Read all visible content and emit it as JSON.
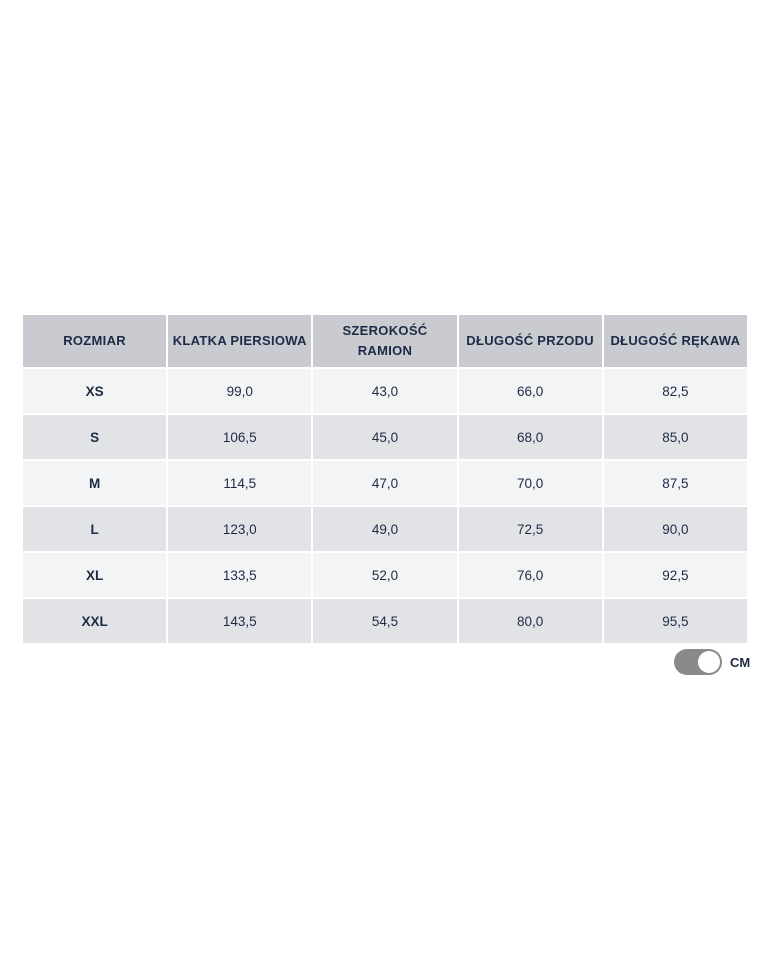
{
  "table": {
    "headers": [
      "ROZMIAR",
      "KLATKA PIERSIOWA",
      "SZEROKOŚĆ RAMION",
      "DŁUGOŚĆ PRZODU",
      "DŁUGOŚĆ RĘKAWA"
    ],
    "rows": [
      [
        "XS",
        "99,0",
        "43,0",
        "66,0",
        "82,5"
      ],
      [
        "S",
        "106,5",
        "45,0",
        "68,0",
        "85,0"
      ],
      [
        "M",
        "114,5",
        "47,0",
        "70,0",
        "87,5"
      ],
      [
        "L",
        "123,0",
        "49,0",
        "72,5",
        "90,0"
      ],
      [
        "XL",
        "133,5",
        "52,0",
        "76,0",
        "92,5"
      ],
      [
        "XXL",
        "143,5",
        "54,5",
        "80,0",
        "95,5"
      ]
    ]
  },
  "unit_toggle": {
    "label": "CM",
    "state": "on",
    "track_color": "#8a8a8a"
  },
  "colors": {
    "header_bg": "#c9cbd1",
    "row_odd": "#f3f4f6",
    "row_even": "#e2e3e7",
    "text": "#1c2b45"
  }
}
